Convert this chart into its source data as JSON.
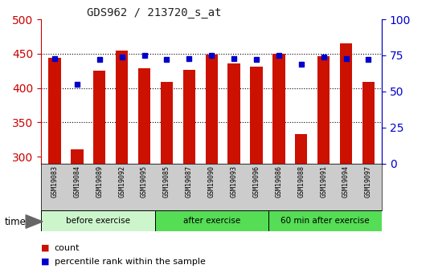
{
  "title": "GDS962 / 213720_s_at",
  "samples": [
    "GSM19083",
    "GSM19084",
    "GSM19089",
    "GSM19092",
    "GSM19095",
    "GSM19085",
    "GSM19087",
    "GSM19090",
    "GSM19093",
    "GSM19096",
    "GSM19086",
    "GSM19088",
    "GSM19091",
    "GSM19094",
    "GSM19097"
  ],
  "counts": [
    444,
    311,
    425,
    455,
    429,
    409,
    426,
    449,
    436,
    431,
    450,
    333,
    446,
    465,
    409
  ],
  "percentiles": [
    73,
    55,
    72,
    74,
    75,
    72,
    73,
    75,
    73,
    72,
    75,
    69,
    74,
    73,
    72
  ],
  "groups": [
    {
      "label": "before exercise",
      "start": 0,
      "end": 5,
      "color": "#d0f5d0"
    },
    {
      "label": "after exercise",
      "start": 5,
      "end": 10,
      "color": "#66dd66"
    },
    {
      "label": "60 min after exercise",
      "start": 10,
      "end": 15,
      "color": "#66dd66"
    }
  ],
  "ylim_left": [
    290,
    500
  ],
  "ylim_right": [
    0,
    100
  ],
  "yticks_left": [
    300,
    350,
    400,
    450,
    500
  ],
  "yticks_right": [
    0,
    25,
    50,
    75,
    100
  ],
  "bar_color": "#cc1100",
  "dot_color": "#0000cc",
  "bar_bottom": 290,
  "grid_color": "#000000",
  "background_color": "#ffffff",
  "tick_label_color_left": "#cc0000",
  "tick_label_color_right": "#0000cc",
  "legend_items": [
    "count",
    "percentile rank within the sample"
  ],
  "time_label": "time",
  "sample_bg": "#cccccc",
  "group1_color": "#ccf5cc",
  "group2_color": "#55dd55",
  "group3_color": "#55dd55"
}
